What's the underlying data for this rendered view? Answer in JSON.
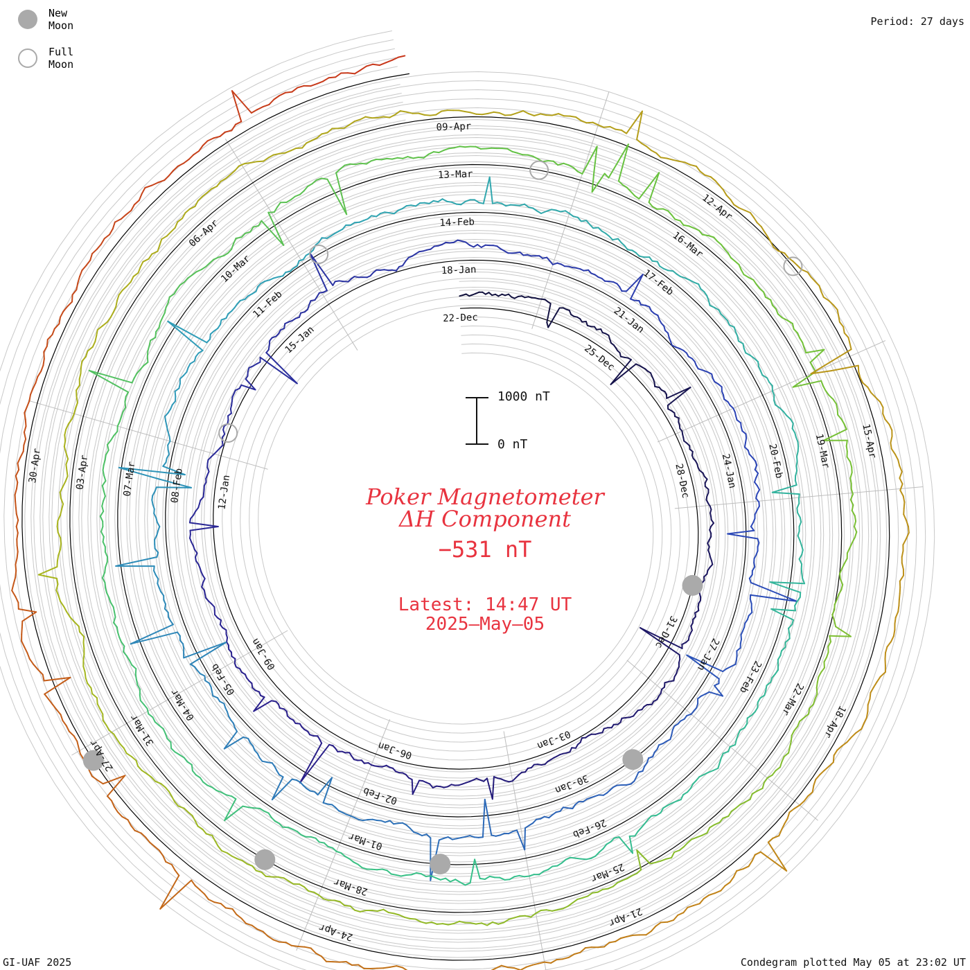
{
  "legend": [
    {
      "label": "New Moon",
      "style": "filled"
    },
    {
      "label": "Full Moon",
      "style": "open"
    }
  ],
  "period_label": "Period: 27 days",
  "footer": {
    "credit": "GI-UAF 2025",
    "plotted": "Condegram plotted May 05 at 23:02 UT"
  },
  "title": {
    "line1": "Poker Magnetometer",
    "line2": "ΔH Component",
    "value": "−531 nT",
    "latest_line1": "Latest: 14:47 UT",
    "latest_line2": "2025–May–05"
  },
  "scale_bar": {
    "top_label": "1000 nT",
    "bottom_label": "0 nT"
  },
  "colors": {
    "title": "#e8333f",
    "grid": "#c8c8c8",
    "baseline": "#000000",
    "moon_fill": "#aaaaaa",
    "moon_open": "#aaaaaa"
  },
  "chart_data": {
    "type": "condegram-spiral",
    "period_days": 27,
    "start_date": "2024-12-22",
    "end_date": "2025-05-05",
    "latest_value_nT": -531,
    "units": "nT",
    "date_labels": [
      "22-Dec",
      "25-Dec",
      "28-Dec",
      "31-Dec",
      "03-Jan",
      "06-Jan",
      "09-Jan",
      "12-Jan",
      "15-Jan",
      "18-Jan",
      "21-Jan",
      "24-Jan",
      "27-Jan",
      "30-Jan",
      "02-Feb",
      "05-Feb",
      "08-Feb",
      "11-Feb",
      "14-Feb",
      "17-Feb",
      "20-Feb",
      "23-Feb",
      "26-Feb",
      "01-Mar",
      "04-Mar",
      "07-Mar",
      "10-Mar",
      "13-Mar",
      "16-Mar",
      "19-Mar",
      "22-Mar",
      "25-Mar",
      "28-Mar",
      "31-Mar",
      "03-Apr",
      "06-Apr",
      "09-Apr",
      "12-Apr",
      "15-Apr",
      "18-Apr",
      "21-Apr",
      "24-Apr",
      "27-Apr",
      "30-Apr"
    ],
    "new_moons": [
      "2024-12-30",
      "2025-01-29",
      "2025-02-28",
      "2025-03-29",
      "2025-04-27"
    ],
    "full_moons": [
      "2025-01-13",
      "2025-02-12",
      "2025-03-14",
      "2025-04-13"
    ],
    "rotation_colors": [
      "#10103a",
      "#2a1f8c",
      "#2b46b8",
      "#2f9fb8",
      "#36c08c",
      "#6cc23a",
      "#a8b51e",
      "#c08a18",
      "#c8361a"
    ]
  }
}
